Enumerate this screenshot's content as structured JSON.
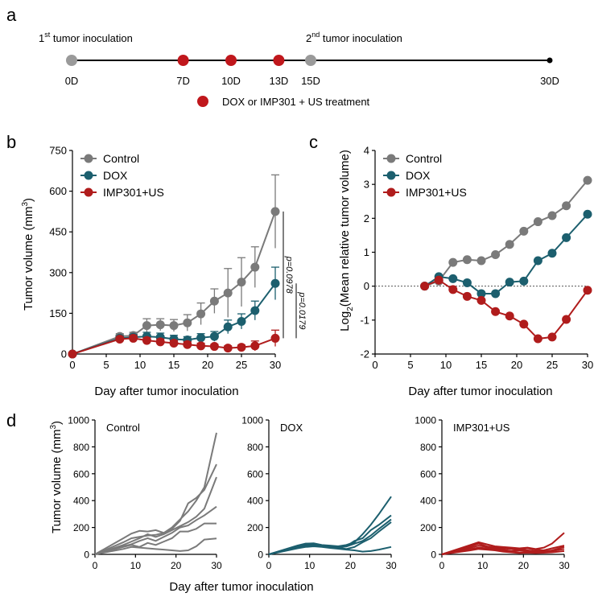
{
  "panel_labels": {
    "a": "a",
    "b": "b",
    "c": "c",
    "d": "d"
  },
  "colors": {
    "control": "#7a7a7a",
    "dox": "#1c5f6e",
    "imp": "#b01c1c",
    "axis": "#000000"
  },
  "timeline": {
    "first_label_pre": "1",
    "first_label_sup": "st",
    "first_label_post": " tumor inoculation",
    "second_label_pre": "2",
    "second_label_sup": "nd",
    "second_label_post": " tumor inoculation",
    "days": [
      0,
      7,
      10,
      13,
      15,
      30
    ],
    "day_labels": [
      "0D",
      "7D",
      "10D",
      "13D",
      "15D",
      "30D"
    ],
    "marker_types": [
      "inoculation",
      "treatment",
      "treatment",
      "treatment",
      "inoculation",
      "end"
    ],
    "legend": "DOX or IMP301 + US treatment"
  },
  "chart_data": [
    {
      "type": "line",
      "panel": "b",
      "xlabel": "Day after tumor inoculation",
      "ylabel": "Tumor volume  (mm",
      "ylabel_sup": "3",
      "ylabel_end": ")",
      "xlim": [
        0,
        30
      ],
      "ylim": [
        0,
        750
      ],
      "xticks": [
        0,
        5,
        10,
        15,
        20,
        25,
        30
      ],
      "xtick_labels": [
        "0",
        "5",
        "10",
        "15",
        "20",
        "25",
        "30"
      ],
      "yticks": [
        0,
        150,
        300,
        450,
        600,
        750
      ],
      "ytick_labels": [
        "0",
        "150",
        "300",
        "450",
        "600",
        "750"
      ],
      "legend_position": "top-left",
      "series": [
        {
          "name": "Control",
          "color_key": "control",
          "x": [
            0,
            7,
            9,
            11,
            13,
            15,
            17,
            19,
            21,
            23,
            25,
            27,
            30
          ],
          "y": [
            0,
            65,
            68,
            105,
            108,
            105,
            115,
            148,
            195,
            225,
            265,
            320,
            525
          ],
          "err": [
            0,
            10,
            12,
            25,
            22,
            22,
            30,
            40,
            45,
            90,
            90,
            75,
            135
          ]
        },
        {
          "name": "DOX",
          "color_key": "dox",
          "x": [
            0,
            7,
            9,
            11,
            13,
            15,
            17,
            19,
            21,
            23,
            25,
            27,
            30
          ],
          "y": [
            0,
            58,
            62,
            65,
            62,
            55,
            52,
            60,
            65,
            100,
            120,
            160,
            260
          ],
          "err": [
            0,
            8,
            10,
            15,
            15,
            14,
            12,
            15,
            18,
            25,
            28,
            35,
            60
          ]
        },
        {
          "name": "IMP301+US",
          "color_key": "imp",
          "x": [
            0,
            7,
            9,
            11,
            13,
            15,
            17,
            19,
            21,
            23,
            25,
            27,
            30
          ],
          "y": [
            0,
            55,
            58,
            50,
            45,
            40,
            35,
            30,
            28,
            22,
            25,
            30,
            58
          ],
          "err": [
            0,
            8,
            10,
            10,
            10,
            10,
            10,
            10,
            8,
            8,
            8,
            18,
            30
          ]
        }
      ],
      "annotations": [
        {
          "text": "p=0.0978",
          "from_series": "Control",
          "to_series": "IMP301+US"
        },
        {
          "text": "p=0.0179",
          "from_series": "DOX",
          "to_series": "IMP301+US"
        }
      ]
    },
    {
      "type": "line",
      "panel": "c",
      "xlabel": "Day after tumor inoculation",
      "ylabel": "Log",
      "ylabel_sub": "2",
      "ylabel_end": "(Mean relative tumor volume)",
      "xlim": [
        0,
        30
      ],
      "ylim": [
        -2,
        4
      ],
      "xticks": [
        0,
        5,
        10,
        15,
        20,
        25,
        30
      ],
      "xtick_labels": [
        "0",
        "5",
        "10",
        "15",
        "20",
        "25",
        "30"
      ],
      "yticks": [
        -2,
        -1,
        0,
        1,
        2,
        3,
        4
      ],
      "ytick_labels": [
        "-2",
        "-1",
        "0",
        "1",
        "2",
        "3",
        "4"
      ],
      "reference_line_y": 0,
      "legend_position": "top-left",
      "series": [
        {
          "name": "Control",
          "color_key": "control",
          "x": [
            7,
            9,
            11,
            13,
            15,
            17,
            19,
            21,
            23,
            25,
            27,
            30
          ],
          "y": [
            0,
            0.15,
            0.7,
            0.78,
            0.75,
            0.93,
            1.23,
            1.62,
            1.9,
            2.08,
            2.37,
            3.12
          ]
        },
        {
          "name": "DOX",
          "color_key": "dox",
          "x": [
            7,
            9,
            11,
            13,
            15,
            17,
            19,
            21,
            23,
            25,
            27,
            30
          ],
          "y": [
            0,
            0.28,
            0.22,
            0.1,
            -0.22,
            -0.22,
            0.12,
            0.15,
            0.75,
            0.97,
            1.43,
            2.12
          ]
        },
        {
          "name": "IMP301+US",
          "color_key": "imp",
          "x": [
            7,
            9,
            11,
            13,
            15,
            17,
            19,
            21,
            23,
            25,
            27,
            30
          ],
          "y": [
            0,
            0.18,
            -0.1,
            -0.3,
            -0.42,
            -0.75,
            -0.88,
            -1.12,
            -1.55,
            -1.5,
            -0.98,
            -0.12
          ]
        }
      ]
    },
    {
      "type": "line",
      "panel": "d",
      "title": "Control",
      "color_key": "control",
      "ylabel": "Tumor volume  (mm",
      "ylabel_sup": "3",
      "ylabel_end": ")",
      "xlabel": "Day after tumor inoculation",
      "xlim": [
        0,
        30
      ],
      "ylim": [
        0,
        1000
      ],
      "xticks": [
        0,
        10,
        20,
        30
      ],
      "xtick_labels": [
        "0",
        "10",
        "20",
        "30"
      ],
      "yticks": [
        0,
        200,
        400,
        600,
        800,
        1000
      ],
      "ytick_labels": [
        "0",
        "200",
        "400",
        "600",
        "800",
        "1000"
      ],
      "series": [
        {
          "x": [
            0,
            7,
            9,
            11,
            13,
            15,
            17,
            19,
            21,
            23,
            25,
            27,
            30
          ],
          "y": [
            0,
            120,
            155,
            175,
            170,
            180,
            160,
            200,
            260,
            320,
            400,
            500,
            905
          ]
        },
        {
          "x": [
            0,
            7,
            9,
            11,
            13,
            15,
            17,
            19,
            21,
            23,
            25,
            27,
            30
          ],
          "y": [
            0,
            90,
            120,
            130,
            140,
            145,
            160,
            190,
            250,
            380,
            420,
            480,
            670
          ]
        },
        {
          "x": [
            0,
            7,
            9,
            11,
            13,
            15,
            17,
            19,
            21,
            23,
            25,
            27,
            30
          ],
          "y": [
            0,
            70,
            95,
            120,
            150,
            130,
            150,
            180,
            210,
            240,
            280,
            340,
            575
          ]
        },
        {
          "x": [
            0,
            7,
            9,
            11,
            13,
            15,
            17,
            19,
            21,
            23,
            25,
            27,
            30
          ],
          "y": [
            0,
            60,
            75,
            100,
            120,
            100,
            130,
            160,
            200,
            215,
            255,
            290,
            355
          ]
        },
        {
          "x": [
            0,
            7,
            9,
            11,
            13,
            15,
            17,
            19,
            21,
            23,
            25,
            27,
            30
          ],
          "y": [
            0,
            55,
            70,
            55,
            85,
            70,
            95,
            120,
            170,
            170,
            190,
            230,
            230
          ]
        },
        {
          "x": [
            0,
            7,
            9,
            11,
            13,
            15,
            17,
            19,
            21,
            23,
            25,
            27,
            30
          ],
          "y": [
            0,
            40,
            55,
            50,
            45,
            40,
            35,
            30,
            25,
            30,
            60,
            110,
            118
          ]
        }
      ]
    },
    {
      "type": "line",
      "panel": "d",
      "title": "DOX",
      "color_key": "dox",
      "xlim": [
        0,
        30
      ],
      "ylim": [
        0,
        1000
      ],
      "xticks": [
        0,
        10,
        20,
        30
      ],
      "xtick_labels": [
        "0",
        "10",
        "20",
        "30"
      ],
      "yticks": [
        0,
        200,
        400,
        600,
        800,
        1000
      ],
      "ytick_labels": [
        "0",
        "200",
        "400",
        "600",
        "800",
        "1000"
      ],
      "series": [
        {
          "x": [
            0,
            7,
            9,
            11,
            13,
            15,
            17,
            19,
            21,
            23,
            25,
            27,
            30
          ],
          "y": [
            0,
            65,
            80,
            82,
            70,
            65,
            60,
            70,
            90,
            150,
            220,
            300,
            430
          ]
        },
        {
          "x": [
            0,
            7,
            9,
            11,
            13,
            15,
            17,
            19,
            21,
            23,
            25,
            27,
            30
          ],
          "y": [
            0,
            60,
            75,
            70,
            65,
            60,
            50,
            60,
            100,
            120,
            180,
            220,
            290
          ]
        },
        {
          "x": [
            0,
            7,
            9,
            11,
            13,
            15,
            17,
            19,
            21,
            23,
            25,
            27,
            30
          ],
          "y": [
            0,
            55,
            70,
            72,
            68,
            62,
            55,
            58,
            80,
            100,
            140,
            190,
            260
          ]
        },
        {
          "x": [
            0,
            7,
            9,
            11,
            13,
            15,
            17,
            19,
            21,
            23,
            25,
            27,
            30
          ],
          "y": [
            0,
            50,
            65,
            68,
            60,
            55,
            50,
            40,
            55,
            90,
            120,
            170,
            240
          ]
        },
        {
          "x": [
            0,
            7,
            9,
            11,
            13,
            15,
            17,
            19,
            21,
            23,
            25,
            27,
            30
          ],
          "y": [
            0,
            45,
            55,
            60,
            55,
            48,
            42,
            35,
            30,
            20,
            25,
            35,
            55
          ]
        }
      ]
    },
    {
      "type": "line",
      "panel": "d",
      "title": "IMP301+US",
      "color_key": "imp",
      "xlim": [
        0,
        30
      ],
      "ylim": [
        0,
        1000
      ],
      "xticks": [
        0,
        10,
        20,
        30
      ],
      "xtick_labels": [
        "0",
        "10",
        "20",
        "30"
      ],
      "yticks": [
        0,
        200,
        400,
        600,
        800,
        1000
      ],
      "ytick_labels": [
        "0",
        "200",
        "400",
        "600",
        "800",
        "1000"
      ],
      "series": [
        {
          "x": [
            0,
            7,
            9,
            11,
            13,
            15,
            17,
            19,
            21,
            23,
            25,
            27,
            30
          ],
          "y": [
            0,
            70,
            90,
            75,
            60,
            55,
            50,
            45,
            50,
            40,
            50,
            80,
            160
          ]
        },
        {
          "x": [
            0,
            7,
            9,
            11,
            13,
            15,
            17,
            19,
            21,
            23,
            25,
            27,
            30
          ],
          "y": [
            0,
            60,
            80,
            60,
            50,
            45,
            40,
            35,
            45,
            35,
            30,
            45,
            65
          ]
        },
        {
          "x": [
            0,
            7,
            9,
            11,
            13,
            15,
            17,
            19,
            21,
            23,
            25,
            27,
            30
          ],
          "y": [
            0,
            50,
            65,
            55,
            45,
            35,
            25,
            30,
            30,
            25,
            20,
            30,
            55
          ]
        },
        {
          "x": [
            0,
            7,
            9,
            11,
            13,
            15,
            17,
            19,
            21,
            23,
            25,
            27,
            30
          ],
          "y": [
            0,
            40,
            50,
            45,
            35,
            25,
            20,
            15,
            20,
            15,
            18,
            25,
            40
          ]
        },
        {
          "x": [
            0,
            7,
            9,
            11,
            13,
            15,
            17,
            19,
            21,
            23,
            25,
            27,
            30
          ],
          "y": [
            0,
            30,
            40,
            35,
            30,
            20,
            15,
            10,
            12,
            10,
            12,
            15,
            25
          ]
        }
      ]
    }
  ]
}
